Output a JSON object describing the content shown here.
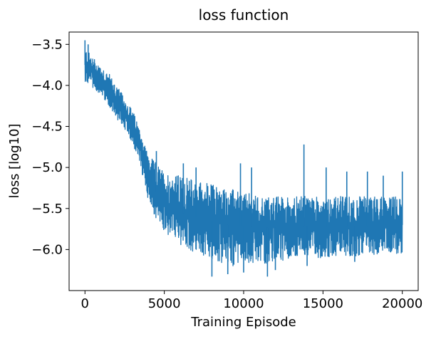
{
  "chart_data": {
    "type": "line",
    "title": "loss function",
    "xlabel": "Training Episode",
    "ylabel": "loss [log10]",
    "xlim": [
      -1000,
      21000
    ],
    "ylim": [
      -6.5,
      -3.35
    ],
    "x_ticks": [
      0,
      5000,
      10000,
      15000,
      20000
    ],
    "x_tick_labels": [
      "0",
      "5000",
      "10000",
      "15000",
      "20000"
    ],
    "y_ticks": [
      -3.5,
      -4.0,
      -4.5,
      -5.0,
      -5.5,
      -6.0
    ],
    "y_tick_labels": [
      "−3.5",
      "−4.0",
      "−4.5",
      "−5.0",
      "−5.5",
      "−6.0"
    ],
    "grid": false,
    "series": [
      {
        "color": "#1f77b4",
        "x_range": [
          0,
          20000
        ],
        "envelope_x": [
          0,
          500,
          1000,
          1500,
          2000,
          2500,
          3000,
          3500,
          4000,
          4500,
          5000,
          6000,
          7000,
          8000,
          9000,
          10000,
          11000,
          12000,
          13000,
          14000,
          15000,
          16000,
          17000,
          18000,
          19000,
          20000
        ],
        "envelope_mean": [
          -3.75,
          -3.85,
          -3.95,
          -4.05,
          -4.2,
          -4.35,
          -4.5,
          -4.75,
          -5.1,
          -5.3,
          -5.45,
          -5.55,
          -5.6,
          -5.65,
          -5.7,
          -5.72,
          -5.73,
          -5.73,
          -5.73,
          -5.72,
          -5.72,
          -5.72,
          -5.72,
          -5.72,
          -5.7,
          -5.7
        ],
        "envelope_low": [
          -3.95,
          -4.05,
          -4.1,
          -4.25,
          -4.4,
          -4.55,
          -4.7,
          -5.0,
          -5.4,
          -5.65,
          -5.8,
          -5.95,
          -6.05,
          -6.15,
          -6.2,
          -6.2,
          -6.18,
          -6.15,
          -6.12,
          -6.1,
          -6.1,
          -6.08,
          -6.08,
          -6.07,
          -6.05,
          -6.05
        ],
        "envelope_high": [
          -3.55,
          -3.65,
          -3.75,
          -3.85,
          -4.0,
          -4.15,
          -4.3,
          -4.55,
          -4.85,
          -4.95,
          -5.05,
          -5.1,
          -5.15,
          -5.2,
          -5.25,
          -5.3,
          -5.35,
          -5.35,
          -5.35,
          -5.35,
          -5.35,
          -5.35,
          -5.35,
          -5.35,
          -5.35,
          -5.35
        ],
        "spikes": [
          {
            "x": 0,
            "y": -3.45
          },
          {
            "x": 200,
            "y": -3.5
          },
          {
            "x": 4200,
            "y": -4.95
          },
          {
            "x": 4500,
            "y": -4.8
          },
          {
            "x": 6200,
            "y": -4.95
          },
          {
            "x": 7000,
            "y": -5.0
          },
          {
            "x": 9800,
            "y": -4.95
          },
          {
            "x": 10500,
            "y": -5.0
          },
          {
            "x": 13800,
            "y": -4.72
          },
          {
            "x": 15200,
            "y": -5.0
          },
          {
            "x": 16500,
            "y": -5.05
          },
          {
            "x": 17800,
            "y": -5.05
          },
          {
            "x": 18800,
            "y": -5.1
          },
          {
            "x": 20000,
            "y": -5.05
          },
          {
            "x": 8000,
            "y": -6.33
          },
          {
            "x": 9000,
            "y": -6.3
          },
          {
            "x": 10000,
            "y": -6.28
          },
          {
            "x": 11500,
            "y": -6.33
          },
          {
            "x": 12000,
            "y": -6.25
          },
          {
            "x": 14000,
            "y": -6.2
          },
          {
            "x": 17000,
            "y": -6.15
          }
        ]
      }
    ]
  }
}
